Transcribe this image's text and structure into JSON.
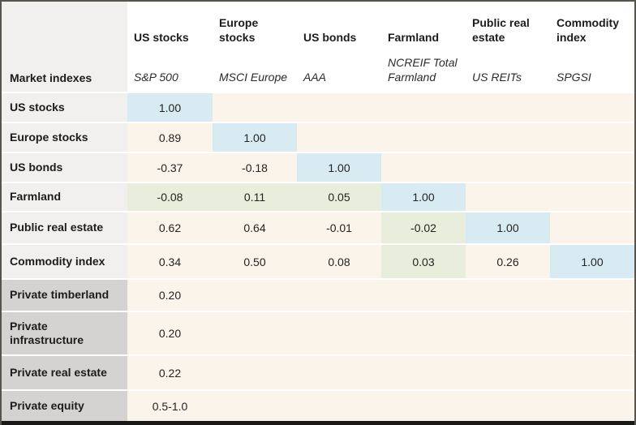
{
  "palette": {
    "diagonal_cell": "#d8ebf3",
    "farmland_highlight_cell": "#e9eddc",
    "value_cell_background": "#fbf4ea",
    "row_header_light": "#f1f0ee",
    "row_header_dark": "#d5d3d1",
    "header_background": "#ffffff",
    "text": "#1c1c1c"
  },
  "table": {
    "column_headers": [
      "US stocks",
      "Europe stocks",
      "US bonds",
      "Farmland",
      "Public real estate",
      "Commodity index"
    ],
    "subheader_label": "Market indexes",
    "index_labels": [
      "S&P 500",
      "MSCI Europe",
      "AAA",
      "NCREIF Total Farmland",
      "US REITs",
      "SPGSI"
    ],
    "rows": [
      {
        "label": "US stocks",
        "values": [
          "1.00",
          "",
          "",
          "",
          "",
          ""
        ]
      },
      {
        "label": "Europe stocks",
        "values": [
          "0.89",
          "1.00",
          "",
          "",
          "",
          ""
        ]
      },
      {
        "label": "US bonds",
        "values": [
          "-0.37",
          "-0.18",
          "1.00",
          "",
          "",
          ""
        ]
      },
      {
        "label": "Farmland",
        "values": [
          "-0.08",
          "0.11",
          "0.05",
          "1.00",
          "",
          ""
        ]
      },
      {
        "label": "Public real estate",
        "values": [
          "0.62",
          "0.64",
          "-0.01",
          "-0.02",
          "1.00",
          ""
        ]
      },
      {
        "label": "Commodity index",
        "values": [
          "0.34",
          "0.50",
          "0.08",
          "0.03",
          "0.26",
          "1.00"
        ]
      },
      {
        "label": "Private timberland",
        "values": [
          "0.20",
          "",
          "",
          "",
          "",
          ""
        ]
      },
      {
        "label": "Private infrastructure",
        "values": [
          "0.20",
          "",
          "",
          "",
          "",
          ""
        ]
      },
      {
        "label": "Private real estate",
        "values": [
          "0.22",
          "",
          "",
          "",
          "",
          ""
        ]
      },
      {
        "label": "Private equity",
        "values": [
          "0.5-1.0",
          "",
          "",
          "",
          "",
          ""
        ]
      }
    ]
  },
  "chart_data": {
    "type": "heatmap",
    "columns": [
      {
        "group": "US stocks",
        "index": "S&P 500"
      },
      {
        "group": "Europe stocks",
        "index": "MSCI Europe"
      },
      {
        "group": "US bonds",
        "index": "AAA"
      },
      {
        "group": "Farmland",
        "index": "NCREIF Total Farmland"
      },
      {
        "group": "Public real estate",
        "index": "US REITs"
      },
      {
        "group": "Commodity index",
        "index": "SPGSI"
      }
    ],
    "row_labels": [
      "US stocks",
      "Europe stocks",
      "US bonds",
      "Farmland",
      "Public real estate",
      "Commodity index",
      "Private timberland",
      "Private infrastructure",
      "Private real estate",
      "Private equity"
    ],
    "values": [
      [
        1.0,
        null,
        null,
        null,
        null,
        null
      ],
      [
        0.89,
        1.0,
        null,
        null,
        null,
        null
      ],
      [
        -0.37,
        -0.18,
        1.0,
        null,
        null,
        null
      ],
      [
        -0.08,
        0.11,
        0.05,
        1.0,
        null,
        null
      ],
      [
        0.62,
        0.64,
        -0.01,
        -0.02,
        1.0,
        null
      ],
      [
        0.34,
        0.5,
        0.08,
        0.03,
        0.26,
        1.0
      ],
      [
        0.2,
        null,
        null,
        null,
        null,
        null
      ],
      [
        0.2,
        null,
        null,
        null,
        null,
        null
      ],
      [
        0.22,
        null,
        null,
        null,
        null,
        null
      ],
      [
        "0.5-1.0",
        null,
        null,
        null,
        null,
        null
      ]
    ],
    "highlights": {
      "diagonal_cells": "#d8ebf3",
      "farmland_row_and_column_cells": "#e9eddc"
    },
    "legend_position": "none",
    "grid": "white row dividers"
  }
}
